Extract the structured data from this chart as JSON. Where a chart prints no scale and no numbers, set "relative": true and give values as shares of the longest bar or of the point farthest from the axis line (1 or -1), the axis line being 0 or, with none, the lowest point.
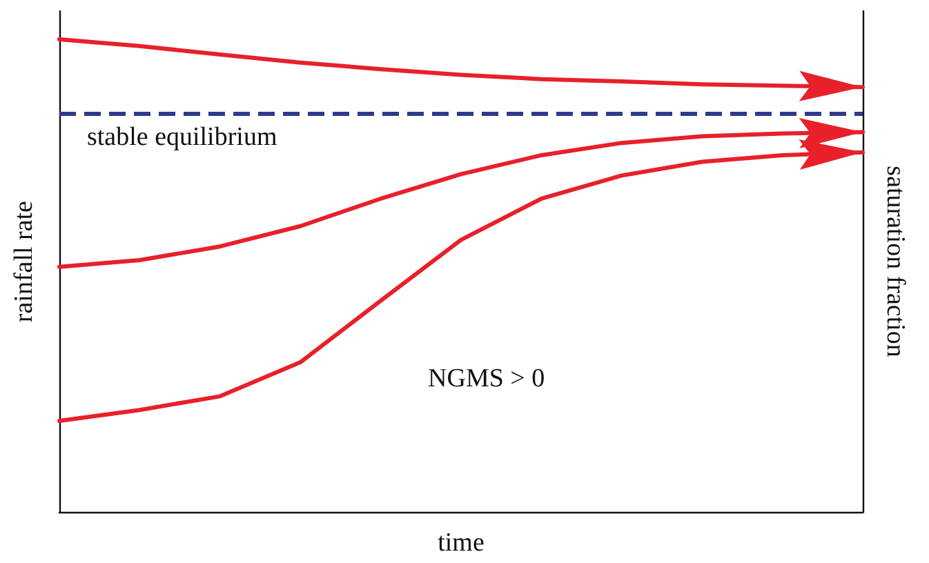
{
  "chart_data": {
    "type": "line",
    "relative": true,
    "xlabel": "time",
    "ylabel": "rainfall rate",
    "y2label": "saturation fraction",
    "grid": false,
    "categories": [
      null,
      null,
      null,
      null,
      null,
      null,
      null,
      null,
      null,
      null,
      null
    ],
    "series": [
      {
        "color": "#e8202a",
        "values": [
          1.0,
          0.986,
          0.968,
          0.951,
          0.937,
          0.925,
          0.916,
          0.911,
          0.905,
          0.902,
          0.899
        ]
      },
      {
        "color": "#e8202a",
        "values": [
          0.519,
          0.533,
          0.562,
          0.605,
          0.663,
          0.715,
          0.755,
          0.781,
          0.795,
          0.801,
          0.804
        ]
      },
      {
        "color": "#e8202a",
        "values": [
          0.193,
          0.216,
          0.245,
          0.317,
          0.447,
          0.576,
          0.663,
          0.712,
          0.741,
          0.755,
          0.761
        ]
      }
    ],
    "ref_lines": [
      {
        "axis": "y",
        "value": 0.844,
        "label": "stable equilibrium",
        "color": "#2e3a8c",
        "line_style": "dashed"
      }
    ],
    "annotations": [
      "NGMS > 0"
    ]
  }
}
